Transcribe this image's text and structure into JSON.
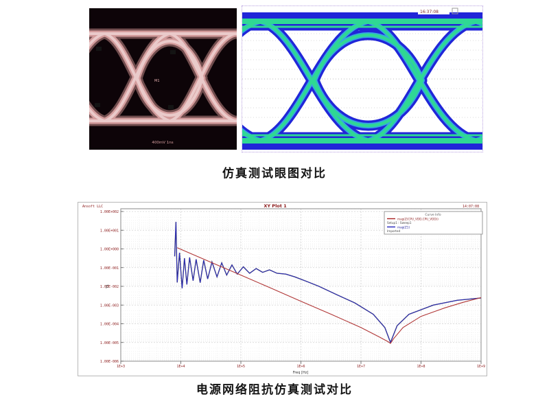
{
  "captions": {
    "eye_comparison": "仿真测试眼图对比",
    "impedance_comparison": "电源网络阻抗仿真测试对比"
  },
  "eye_left": {
    "name": "measured eye diagram (oscilloscope)",
    "center_label": "M1",
    "bottom_label": "400mV 1ns",
    "trace_color": "#d39c9c",
    "background": "#0d0408"
  },
  "eye_right": {
    "name": "simulated eye diagram",
    "readout": "16:37:08",
    "outer_color": "#2126d8",
    "core_color": "#2fd894",
    "background": "#ffffff"
  },
  "chart_data": {
    "type": "line",
    "title": "XY Plot 1",
    "vendor_label": "Ansoft LLC",
    "corner_label": "14:07:08",
    "xlabel": "Freq [Hz]",
    "ylabel": "Y1",
    "x_scale": "log",
    "y_scale": "log",
    "xlim": [
      1000,
      1000000000
    ],
    "ylim": [
      1e-06,
      100
    ],
    "x_tick_labels": [
      "1E+3",
      "1E+4",
      "1E+5",
      "1E+6",
      "1E+7",
      "1E+8",
      "1E+9"
    ],
    "y_tick_labels": [
      "1.00E+002",
      "1.00E+001",
      "1.00E+000",
      "1.00E-001",
      "1.00E-002",
      "1.00E-003",
      "1.00E-004",
      "1.00E-005",
      "1.00E-006"
    ],
    "grid": "on",
    "legend": {
      "position": "top-right",
      "header": "Curve Info",
      "rows": [
        {
          "line1": "mag(Z(CPU_VDD,CPU_VDD))",
          "line2": "Setup1 : Sweep1",
          "color": "#aa2222"
        },
        {
          "line1": "mag(Z1)",
          "line2": "Imported",
          "color": "#2222bb"
        }
      ]
    },
    "series": [
      {
        "name": "mag(Z1) Imported (measured, spiky)",
        "color": "#2a2ad0",
        "shadow_color": "#3a3a4a",
        "points": [
          [
            7900,
            0.4
          ],
          [
            8300,
            28
          ],
          [
            8700,
            0.016
          ],
          [
            9500,
            0.63
          ],
          [
            10500,
            0.0079
          ],
          [
            11500,
            0.32
          ],
          [
            12600,
            0.0126
          ],
          [
            14000,
            0.35
          ],
          [
            16000,
            0.02
          ],
          [
            18000,
            0.28
          ],
          [
            21000,
            0.0158
          ],
          [
            24000,
            0.25
          ],
          [
            28000,
            0.025
          ],
          [
            33000,
            0.2
          ],
          [
            40000,
            0.032
          ],
          [
            48000,
            0.18
          ],
          [
            58000,
            0.04
          ],
          [
            71000,
            0.14
          ],
          [
            87000,
            0.045
          ],
          [
            110000,
            0.11
          ],
          [
            140000,
            0.05
          ],
          [
            180000,
            0.089
          ],
          [
            230000,
            0.056
          ],
          [
            300000,
            0.076
          ],
          [
            400000,
            0.05
          ],
          [
            560000,
            0.045
          ],
          [
            790000,
            0.032
          ],
          [
            1260000,
            0.018
          ],
          [
            2000000,
            0.01
          ],
          [
            4000000,
            0.0035
          ],
          [
            7900000,
            0.0013
          ],
          [
            16000000,
            0.00032
          ],
          [
            25000000,
            6.3e-05
          ],
          [
            31000000,
            1e-05
          ],
          [
            40000000,
            7.9e-05
          ],
          [
            63000000,
            0.00032
          ],
          [
            160000000,
            0.001
          ],
          [
            400000000,
            0.0018
          ],
          [
            1000000000,
            0.0024
          ]
        ]
      },
      {
        "name": "mag(Z(CPU_VDD,CPU_VDD)) Setup1:Sweep1 (simulated, smooth)",
        "color": "#b03535",
        "points": [
          [
            8700,
            1.15
          ],
          [
            16000,
            0.5
          ],
          [
            40000,
            0.14
          ],
          [
            100000,
            0.04
          ],
          [
            320000,
            0.0079
          ],
          [
            1000000,
            0.0016
          ],
          [
            3200000,
            0.00032
          ],
          [
            10000000,
            6.3e-05
          ],
          [
            20000000,
            2e-05
          ],
          [
            28000000,
            1.12e-05
          ],
          [
            31000000,
            8.9e-06
          ],
          [
            35000000,
            1.6e-05
          ],
          [
            50000000,
            6.3e-05
          ],
          [
            100000000,
            0.00025
          ],
          [
            250000000,
            0.00071
          ],
          [
            500000000,
            0.0014
          ],
          [
            1000000000,
            0.0025
          ]
        ]
      }
    ]
  }
}
